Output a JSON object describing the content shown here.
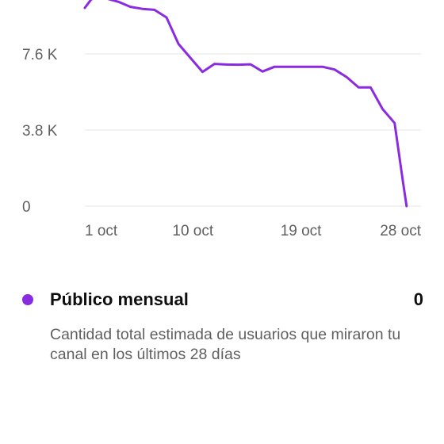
{
  "colors": {
    "series": "#8a2be2",
    "gridline": "#e4e4e4",
    "axis_text": "#606060",
    "primary_text": "#0f0f0f"
  },
  "legend": {
    "label": "Público mensual",
    "value": "0",
    "description": "Cantidad total estimada de usuarios que miraron tu canal en los últimos 28 días"
  },
  "chart_data": {
    "type": "line",
    "y_ticks": [
      {
        "value": 0,
        "label": "0"
      },
      {
        "value": 3800,
        "label": "3.8 K"
      },
      {
        "value": 7600,
        "label": "7.6 K"
      }
    ],
    "x_ticks": [
      {
        "day": 1,
        "label": "1 oct"
      },
      {
        "day": 10,
        "label": "10 oct"
      },
      {
        "day": 19,
        "label": "19 oct"
      },
      {
        "day": 28,
        "label": "28 oct"
      }
    ],
    "ylim": [
      0,
      10000
    ],
    "xlim": [
      1,
      29
    ],
    "grid": true,
    "series": [
      {
        "color": "#8a2be2",
        "points": [
          [
            1,
            9900
          ],
          [
            1.5,
            10300
          ],
          [
            2,
            10500
          ],
          [
            3.8,
            10200
          ],
          [
            4.8,
            9950
          ],
          [
            5.8,
            9850
          ],
          [
            6.8,
            9800
          ],
          [
            7.8,
            9420
          ],
          [
            8.8,
            8100
          ],
          [
            9.8,
            7400
          ],
          [
            10.8,
            6700
          ],
          [
            11.8,
            7100
          ],
          [
            12.8,
            7070
          ],
          [
            13.8,
            7060
          ],
          [
            14.8,
            7080
          ],
          [
            15.8,
            6720
          ],
          [
            16.8,
            6960
          ],
          [
            17.8,
            6960
          ],
          [
            18.8,
            6960
          ],
          [
            19.8,
            6960
          ],
          [
            20.8,
            6960
          ],
          [
            21.8,
            6820
          ],
          [
            22.8,
            6450
          ],
          [
            23.8,
            5930
          ],
          [
            24.8,
            5930
          ],
          [
            25.8,
            4850
          ],
          [
            26.8,
            4150
          ],
          [
            27.5,
            1200
          ],
          [
            27.8,
            0
          ]
        ]
      }
    ]
  }
}
